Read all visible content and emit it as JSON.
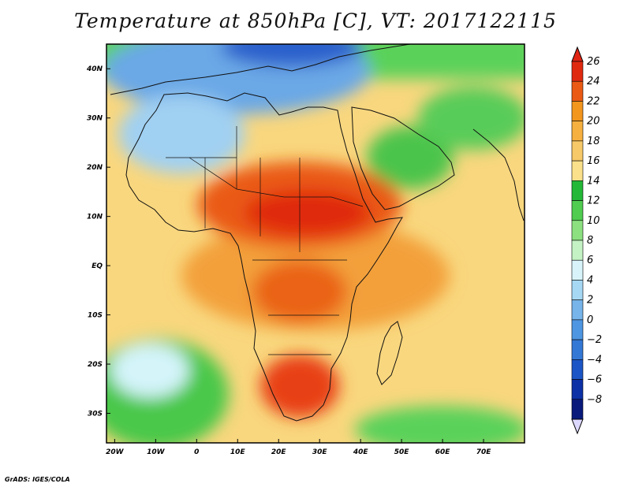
{
  "title": "Temperature at 850hPa [C], VT: 2017122115",
  "credit": "GrADS: IGES/COLA",
  "map": {
    "lat_range": [
      -36,
      45
    ],
    "lon_range": [
      -22,
      80
    ],
    "lat_ticks": [
      {
        "value": 40,
        "label": "40N"
      },
      {
        "value": 30,
        "label": "30N"
      },
      {
        "value": 20,
        "label": "20N"
      },
      {
        "value": 10,
        "label": "10N"
      },
      {
        "value": 0,
        "label": "EQ"
      },
      {
        "value": -10,
        "label": "10S"
      },
      {
        "value": -20,
        "label": "20S"
      },
      {
        "value": -30,
        "label": "30S"
      }
    ],
    "lon_ticks": [
      {
        "value": -20,
        "label": "20W"
      },
      {
        "value": -10,
        "label": "10W"
      },
      {
        "value": 0,
        "label": "0"
      },
      {
        "value": 10,
        "label": "10E"
      },
      {
        "value": 20,
        "label": "20E"
      },
      {
        "value": 30,
        "label": "30E"
      },
      {
        "value": 40,
        "label": "40E"
      },
      {
        "value": 50,
        "label": "50E"
      },
      {
        "value": 60,
        "label": "60E"
      },
      {
        "value": 70,
        "label": "70E"
      }
    ]
  },
  "colorbar": {
    "levels": [
      "26",
      "24",
      "22",
      "20",
      "18",
      "16",
      "14",
      "12",
      "10",
      "8",
      "6",
      "4",
      "2",
      "0",
      "−2",
      "−4",
      "−6",
      "−8"
    ],
    "colors": [
      "#e02a10",
      "#ea5a14",
      "#f2961e",
      "#f6b040",
      "#f7c968",
      "#fae08a",
      "#24b838",
      "#50cc50",
      "#8ce080",
      "#c4f2c4",
      "#d8f4fa",
      "#a6d8f4",
      "#76b4ea",
      "#4e96e2",
      "#3478d6",
      "#1c56c6",
      "#0c30a6",
      "#0a1a7c"
    ],
    "top_arrow_color": "#e02414",
    "bottom_arrow_color": "#dcd8ff"
  }
}
